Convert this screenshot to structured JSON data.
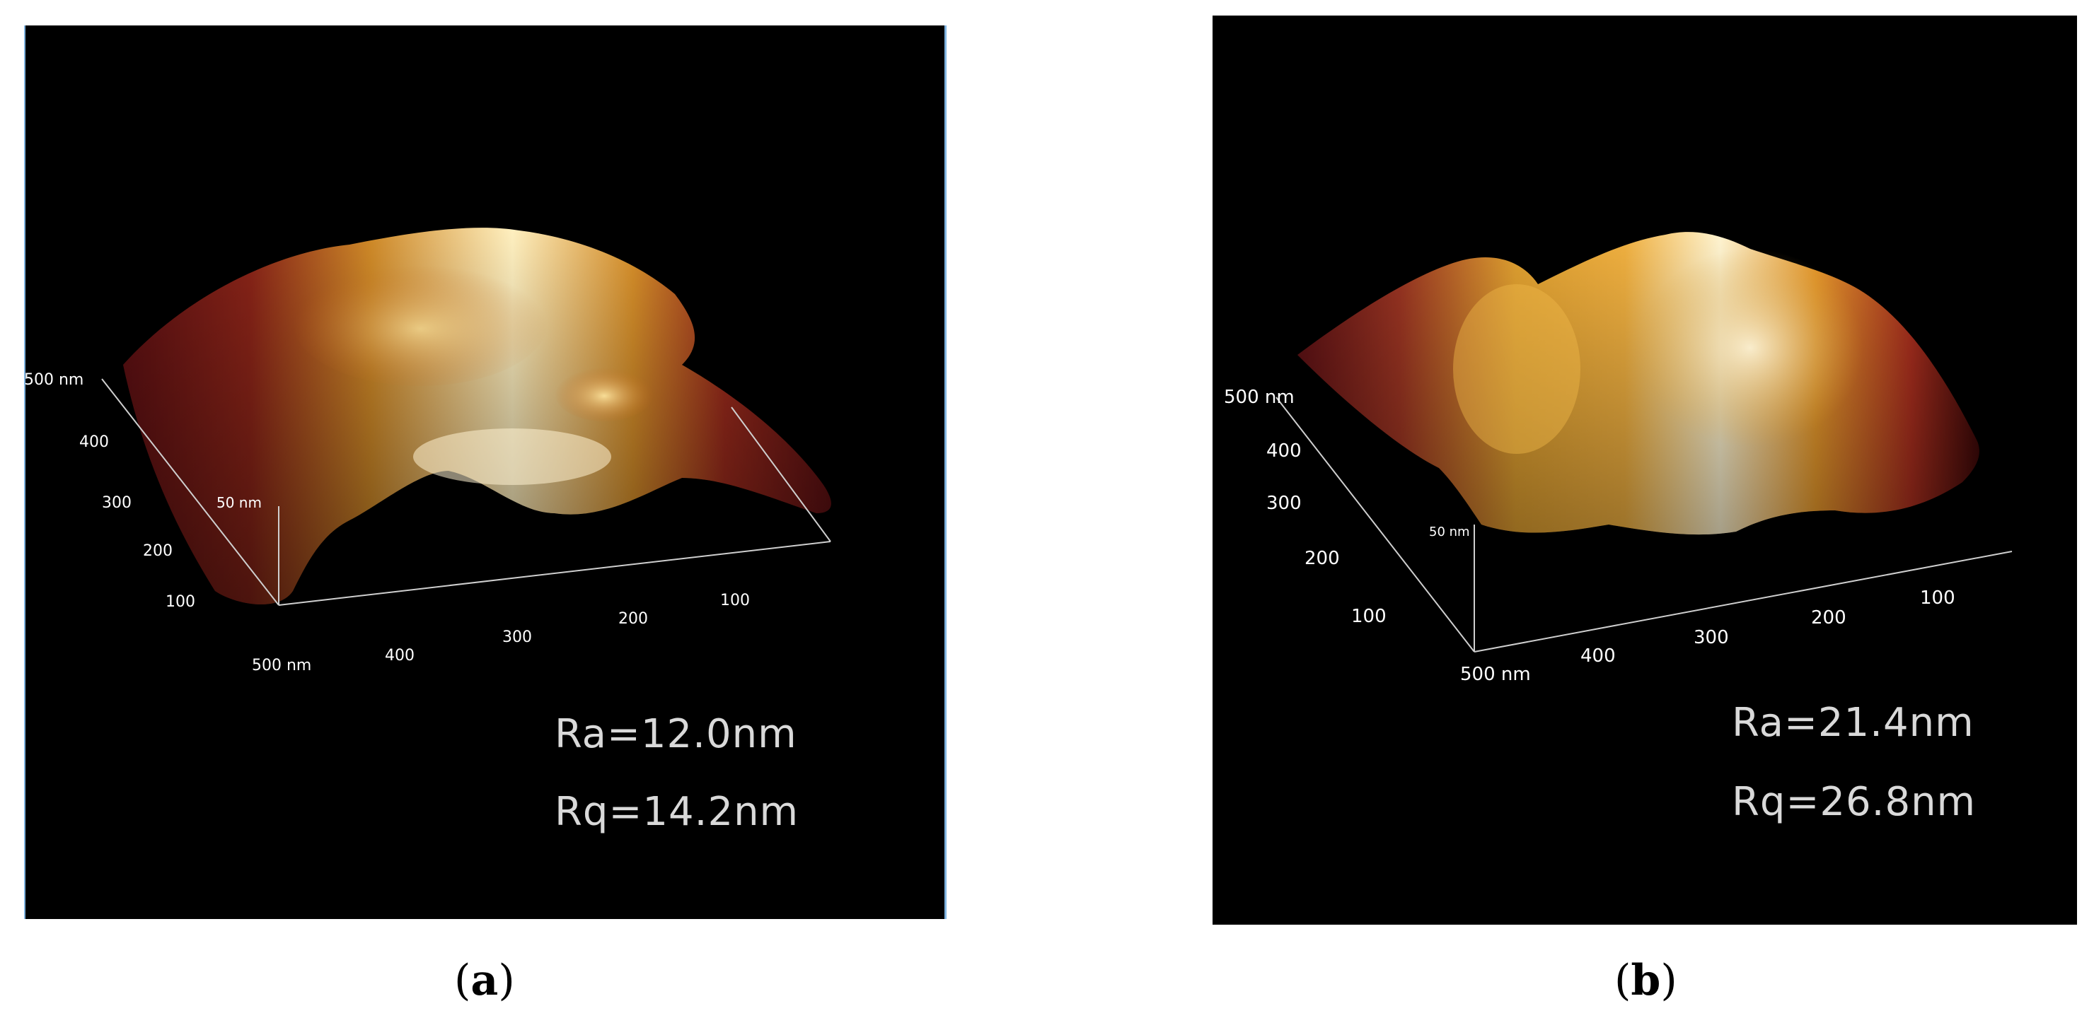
{
  "panels": [
    {
      "caption_letter": "a",
      "roughness": {
        "ra": "Ra=12.0nm",
        "rq": "Rq=14.2nm"
      },
      "axis_left": {
        "ticks": [
          "500 nm",
          "400",
          "300",
          "200",
          "100"
        ]
      },
      "axis_bottom": {
        "ticks": [
          "500 nm",
          "400",
          "300",
          "200",
          "100"
        ]
      },
      "z_label": "50 nm"
    },
    {
      "caption_letter": "b",
      "roughness": {
        "ra": "Ra=21.4nm",
        "rq": "Rq=26.8nm"
      },
      "axis_left": {
        "ticks": [
          "500 nm",
          "400",
          "300",
          "200",
          "100"
        ]
      },
      "axis_bottom": {
        "ticks": [
          "500 nm",
          "400",
          "300",
          "200",
          "100"
        ]
      },
      "z_label": "50 nm"
    }
  ],
  "colors": {
    "background": "#000000",
    "surface_dark": "#6e1414",
    "surface_mid": "#c8701e",
    "surface_light": "#fff2c8",
    "caption_text": "#000000"
  }
}
